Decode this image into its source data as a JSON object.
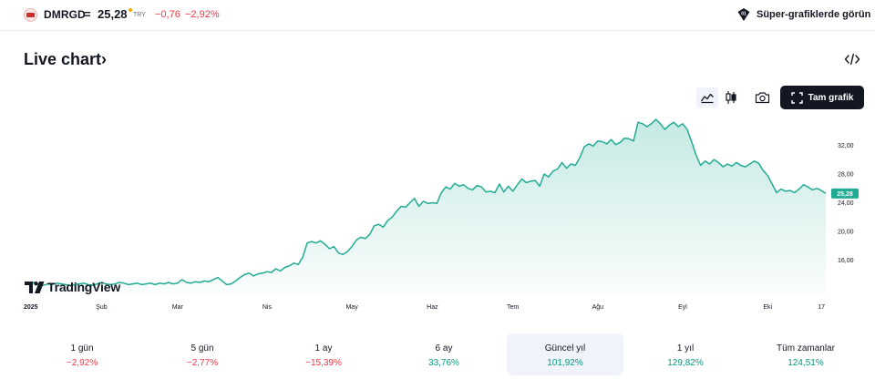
{
  "header": {
    "symbol": "DMRGD",
    "separator": "=",
    "price": "25,28",
    "currency": "TRY",
    "change": "−0,76",
    "change_pct": "−2,92%",
    "super_link": "Süper-grafiklerde görün"
  },
  "section": {
    "title": "Live chart",
    "title_chevron": "›"
  },
  "toolbar": {
    "full_chart": "Tam grafik",
    "icons": [
      "area-chart-icon",
      "candles-icon",
      "camera-icon",
      "fullscreen-icon",
      "embed-code-icon"
    ]
  },
  "brand": {
    "name": "TradingView"
  },
  "colors": {
    "line": "#22ab94",
    "fill_top": "#22ab94",
    "negative": "#f23645",
    "positive": "#089981",
    "price_tag": "#22ab94"
  },
  "chart_data": {
    "type": "area",
    "y_ticks": [
      "32,00",
      "28,00",
      "24,00",
      "20,00",
      "16,00"
    ],
    "y_tick_values": [
      32,
      28,
      24,
      20,
      16
    ],
    "ylim": [
      11.0,
      36.5
    ],
    "x_labels": [
      "2025",
      "Şub",
      "Mar",
      "Nis",
      "May",
      "Haz",
      "Tem",
      "Ağu",
      "Eyl",
      "Eki",
      "17"
    ],
    "x_label_index": [
      0,
      17,
      34,
      54,
      73,
      91,
      109,
      128,
      147,
      166,
      178
    ],
    "last_price_label": "25,28",
    "last_value": 25.28,
    "values": [
      12.8,
      12.7,
      12.9,
      12.6,
      12.5,
      12.7,
      12.6,
      12.8,
      12.7,
      12.6,
      12.5,
      12.6,
      12.7,
      12.8,
      12.6,
      12.5,
      12.7,
      12.9,
      12.7,
      12.6,
      12.7,
      12.9,
      12.8,
      12.6,
      12.7,
      12.8,
      12.6,
      12.7,
      12.8,
      12.6,
      12.8,
      12.7,
      12.9,
      12.7,
      12.8,
      13.3,
      12.9,
      12.8,
      13.0,
      12.9,
      13.1,
      13.0,
      13.3,
      13.6,
      13.1,
      12.6,
      12.7,
      13.1,
      13.6,
      14.0,
      14.2,
      13.8,
      14.1,
      14.2,
      14.4,
      14.3,
      14.8,
      14.5,
      15.0,
      15.2,
      15.6,
      15.4,
      16.4,
      18.4,
      18.6,
      18.4,
      18.7,
      18.2,
      17.6,
      17.9,
      17.0,
      16.8,
      17.2,
      17.9,
      18.8,
      19.2,
      19.0,
      19.6,
      20.8,
      21.0,
      20.6,
      21.5,
      22.0,
      22.8,
      23.5,
      23.4,
      24.0,
      24.6,
      23.5,
      24.2,
      23.9,
      24.0,
      23.9,
      25.4,
      26.2,
      25.9,
      26.7,
      26.3,
      26.5,
      26.0,
      25.8,
      26.4,
      26.2,
      25.5,
      25.6,
      25.4,
      26.6,
      25.5,
      26.3,
      25.6,
      26.5,
      27.3,
      26.8,
      27.0,
      27.1,
      26.3,
      28.0,
      27.6,
      28.4,
      28.7,
      29.6,
      28.8,
      29.4,
      29.2,
      30.3,
      31.8,
      32.2,
      31.9,
      32.6,
      32.5,
      32.2,
      32.8,
      32.1,
      32.4,
      33.0,
      32.9,
      32.6,
      35.2,
      35.0,
      34.6,
      35.0,
      35.6,
      35.0,
      34.2,
      34.8,
      35.2,
      34.6,
      35.0,
      34.2,
      32.5,
      30.6,
      29.2,
      29.8,
      29.4,
      30.0,
      29.6,
      29.0,
      29.4,
      29.1,
      29.6,
      29.2,
      29.0,
      29.4,
      29.8,
      29.5,
      28.5,
      27.8,
      26.6,
      25.4,
      25.9,
      25.6,
      25.7,
      25.4,
      25.9,
      26.5,
      26.2,
      25.8,
      26.0,
      25.7,
      25.28
    ],
    "grid": false
  },
  "periods": [
    {
      "label": "1 gün",
      "value": "−2,92%",
      "sign": "neg"
    },
    {
      "label": "5 gün",
      "value": "−2,77%",
      "sign": "neg"
    },
    {
      "label": "1 ay",
      "value": "−15,39%",
      "sign": "neg"
    },
    {
      "label": "6 ay",
      "value": "33,76%",
      "sign": "pos"
    },
    {
      "label": "Güncel yıl",
      "value": "101,92%",
      "sign": "pos",
      "active": true
    },
    {
      "label": "1 yıl",
      "value": "129,82%",
      "sign": "pos"
    },
    {
      "label": "Tüm zamanlar",
      "value": "124,51%",
      "sign": "pos"
    }
  ]
}
